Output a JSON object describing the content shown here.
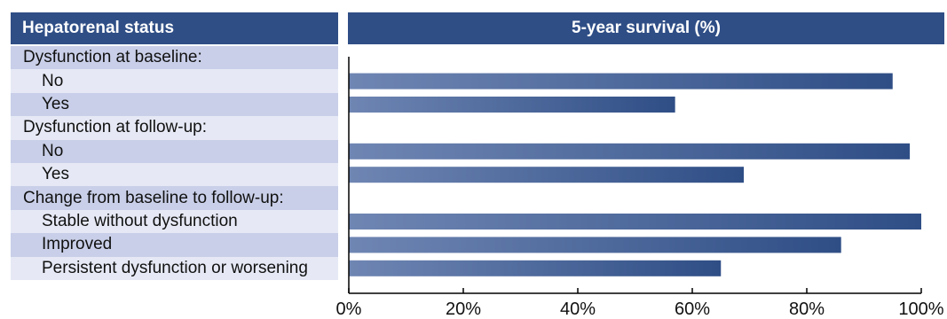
{
  "header": {
    "left_title": "Hepatorenal status",
    "right_title": "5-year survival (%)"
  },
  "rows": [
    {
      "label": "Dysfunction at baseline:",
      "type": "group"
    },
    {
      "label": "No",
      "type": "sub"
    },
    {
      "label": "Yes",
      "type": "sub"
    },
    {
      "label": "Dysfunction at follow-up:",
      "type": "group"
    },
    {
      "label": "No",
      "type": "sub"
    },
    {
      "label": "Yes",
      "type": "sub"
    },
    {
      "label": "Change from baseline to follow-up:",
      "type": "group"
    },
    {
      "label": "Stable without dysfunction",
      "type": "sub"
    },
    {
      "label": "Improved",
      "type": "sub"
    },
    {
      "label": "Persistent dysfunction or worsening",
      "type": "sub"
    }
  ],
  "colors": {
    "header": "#2f4e86",
    "row_dark": "#c9cfe8",
    "row_light": "#e6e9f5",
    "bar_start": "#6f86b3",
    "bar_end": "#2f4e86"
  },
  "chart_data": {
    "type": "bar",
    "orientation": "horizontal",
    "title": "5-year survival (%)",
    "categories": [
      "Dysfunction at baseline: No",
      "Dysfunction at baseline: Yes",
      "Dysfunction at follow-up: No",
      "Dysfunction at follow-up: Yes",
      "Stable without dysfunction",
      "Improved",
      "Persistent dysfunction or worsening"
    ],
    "values": [
      95,
      57,
      98,
      69,
      100,
      86,
      65
    ],
    "row_index": [
      1,
      2,
      4,
      5,
      7,
      8,
      9
    ],
    "xlim": [
      0,
      100
    ],
    "ticks": [
      0,
      20,
      40,
      60,
      80,
      100
    ],
    "tick_labels": [
      "0%",
      "20%",
      "40%",
      "60%",
      "80%",
      "100%"
    ],
    "grid": false
  }
}
